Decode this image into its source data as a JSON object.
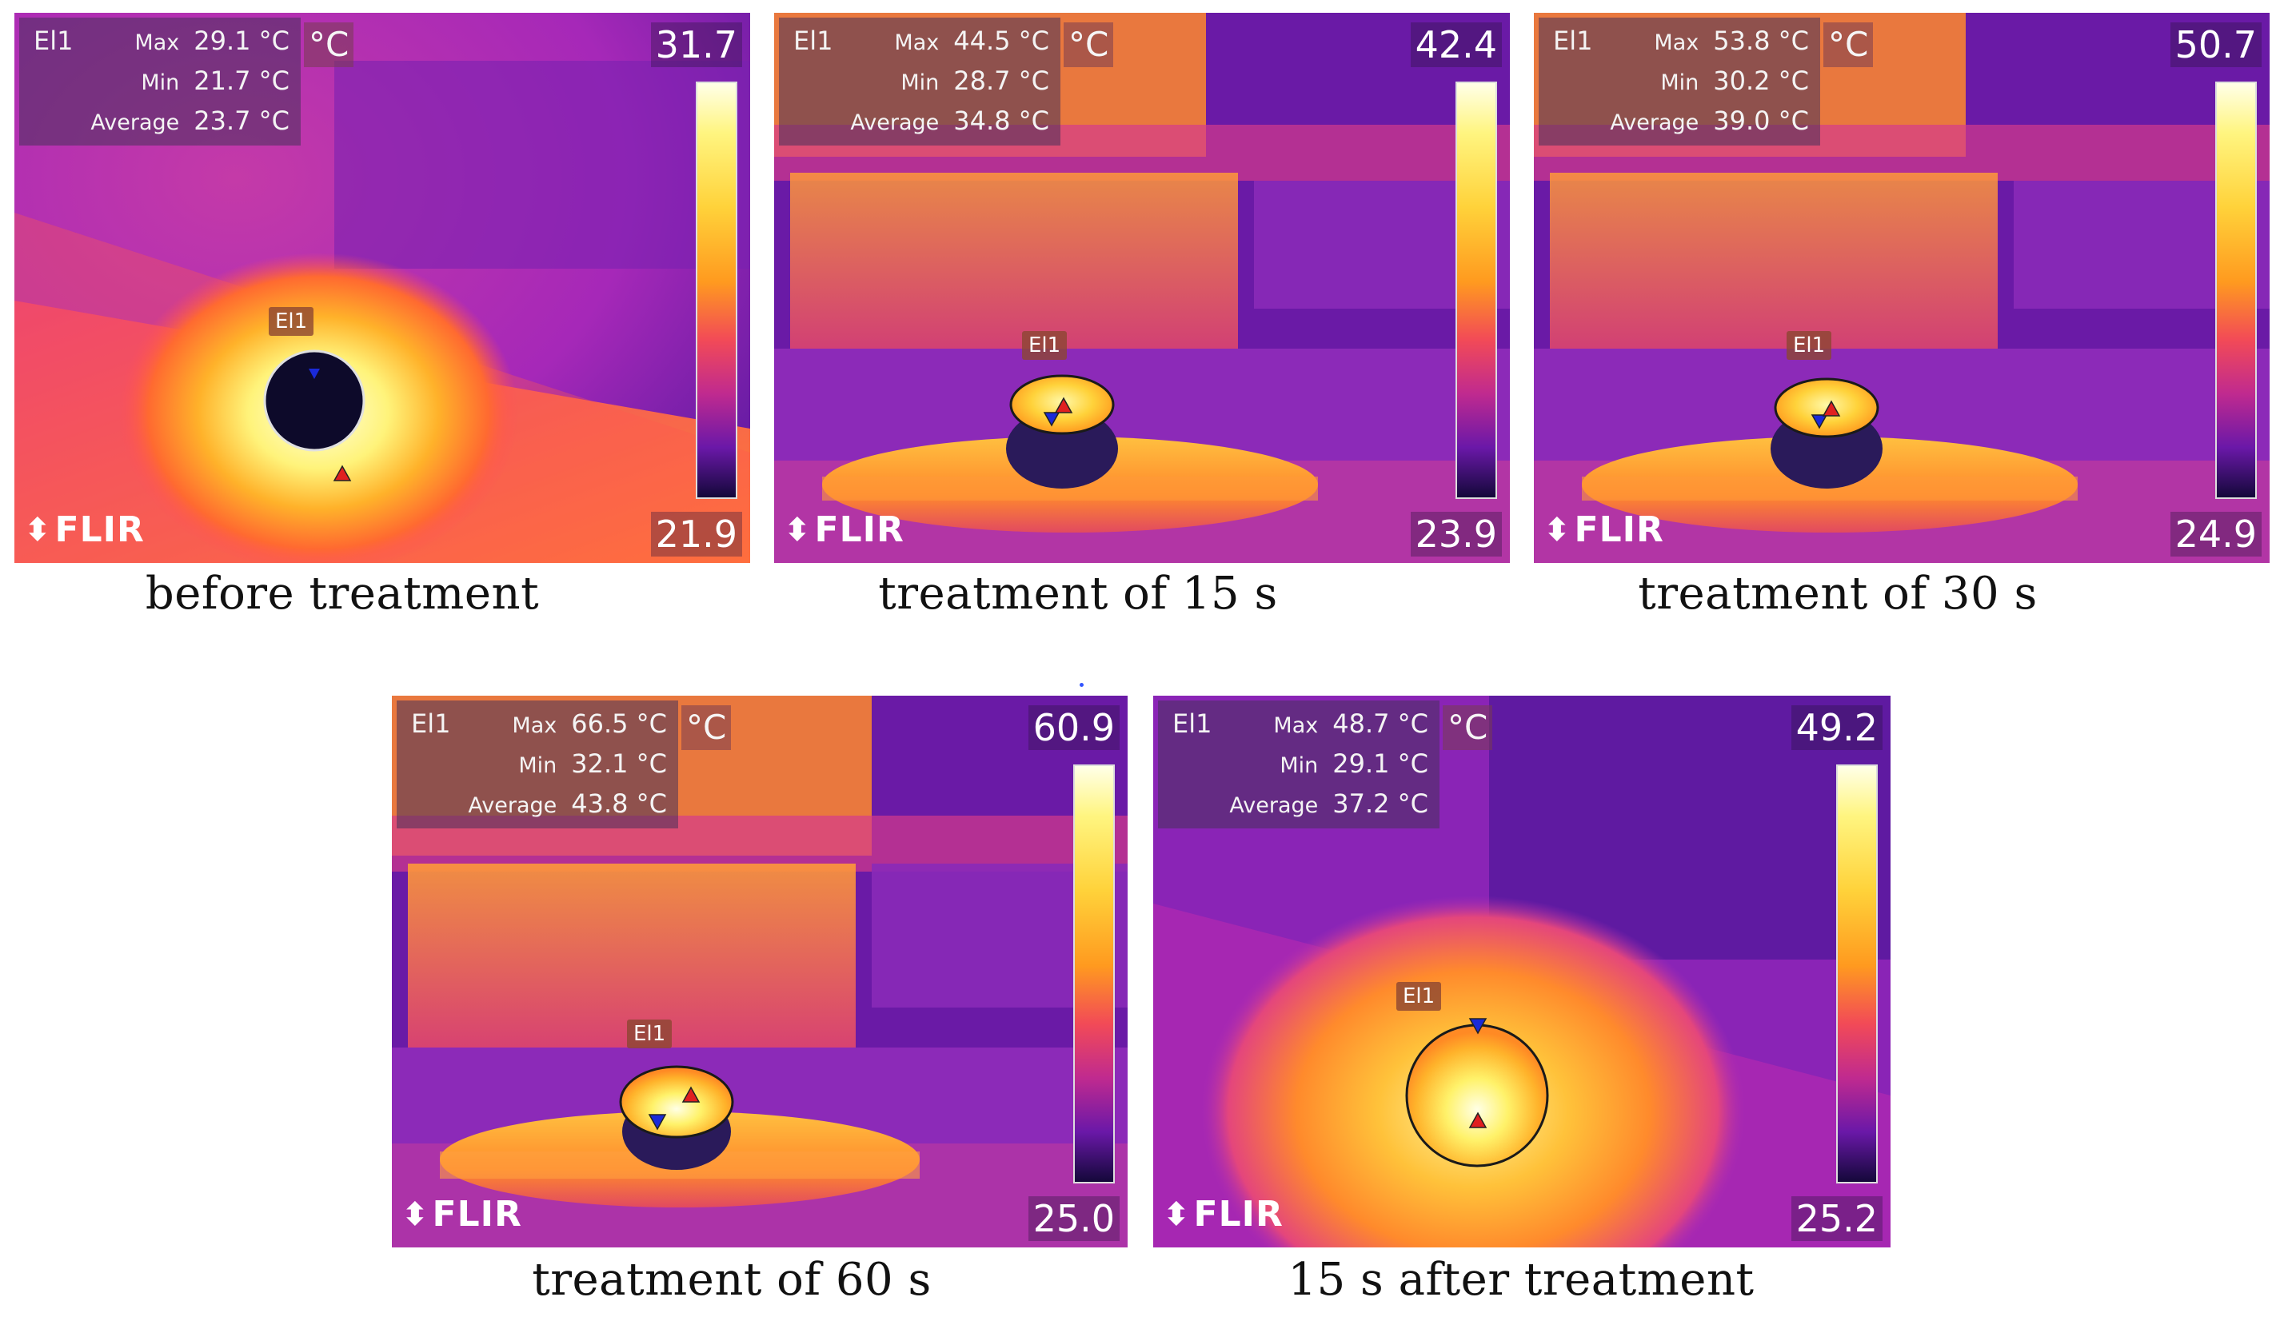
{
  "panels": [
    {
      "caption": "before treatment",
      "el": "El1",
      "max_label": "Max",
      "max_value": "29.1 °C",
      "min_label": "Min",
      "min_value": "21.7 °C",
      "avg_label": "Average",
      "avg_value": "23.7 °C",
      "unit": "°C",
      "scale_max": "31.7",
      "scale_min": "21.9",
      "tag": "El1",
      "logo": "FLIR"
    },
    {
      "caption": "treatment of 15 s",
      "el": "El1",
      "max_label": "Max",
      "max_value": "44.5 °C",
      "min_label": "Min",
      "min_value": "28.7 °C",
      "avg_label": "Average",
      "avg_value": "34.8 °C",
      "unit": "°C",
      "scale_max": "42.4",
      "scale_min": "23.9",
      "tag": "El1",
      "logo": "FLIR"
    },
    {
      "caption": "treatment of 30 s",
      "el": "El1",
      "max_label": "Max",
      "max_value": "53.8 °C",
      "min_label": "Min",
      "min_value": "30.2 °C",
      "avg_label": "Average",
      "avg_value": "39.0 °C",
      "unit": "°C",
      "scale_max": "50.7",
      "scale_min": "24.9",
      "tag": "El1",
      "logo": "FLIR"
    },
    {
      "caption": "treatment of 60 s",
      "el": "El1",
      "max_label": "Max",
      "max_value": "66.5 °C",
      "min_label": "Min",
      "min_value": "32.1 °C",
      "avg_label": "Average",
      "avg_value": "43.8 °C",
      "unit": "°C",
      "scale_max": "60.9",
      "scale_min": "25.0",
      "tag": "El1",
      "logo": "FLIR"
    },
    {
      "caption": "15 s after treatment",
      "el": "El1",
      "max_label": "Max",
      "max_value": "48.7 °C",
      "min_label": "Min",
      "min_value": "29.1 °C",
      "avg_label": "Average",
      "avg_value": "37.2 °C",
      "unit": "°C",
      "scale_max": "49.2",
      "scale_min": "25.2",
      "tag": "El1",
      "logo": "FLIR"
    }
  ],
  "colors": {
    "palette_hot": "#ffffe8",
    "palette_warm": "#ff9a1f",
    "palette_mid": "#c02a8f",
    "palette_cold": "#14083a",
    "max_marker": "#e02020",
    "min_marker": "#1a2ad8"
  }
}
